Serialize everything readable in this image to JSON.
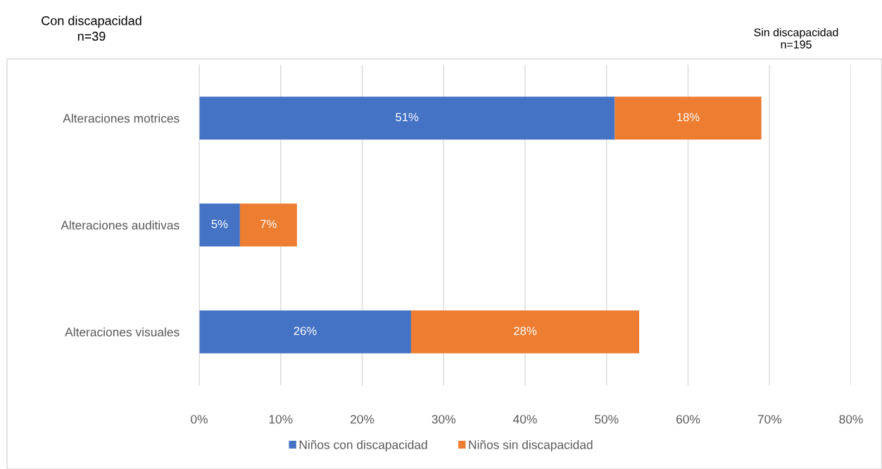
{
  "chart_data": {
    "type": "bar",
    "orientation": "horizontal",
    "stacked": true,
    "categories": [
      "Alteraciones motrices",
      "Alteraciones auditivas",
      "Alteraciones visuales"
    ],
    "series": [
      {
        "name": "Niños con discapacidad",
        "color": "#4472c4",
        "values": [
          51,
          5,
          26
        ]
      },
      {
        "name": "Niños sin discapacidad",
        "color": "#ed7d31",
        "values": [
          18,
          7,
          28
        ]
      }
    ],
    "xlim": [
      0,
      80
    ],
    "xticks": [
      {
        "value": 0,
        "label": "0%"
      },
      {
        "value": 10,
        "label": "10%"
      },
      {
        "value": 20,
        "label": "20%"
      },
      {
        "value": 30,
        "label": "30%"
      },
      {
        "value": 40,
        "label": "40%"
      },
      {
        "value": 50,
        "label": "50%"
      },
      {
        "value": 60,
        "label": "60%"
      },
      {
        "value": 70,
        "label": "70%"
      },
      {
        "value": 80,
        "label": "80%"
      }
    ],
    "grid": "x",
    "legend": "bottom",
    "value_labels": [
      [
        "51%",
        "5%",
        "26%"
      ],
      [
        "18%",
        "7%",
        "28%"
      ]
    ],
    "annotations": [
      "Con discapacidad\nn=39",
      "Sin discapacidad\nn=195"
    ]
  }
}
